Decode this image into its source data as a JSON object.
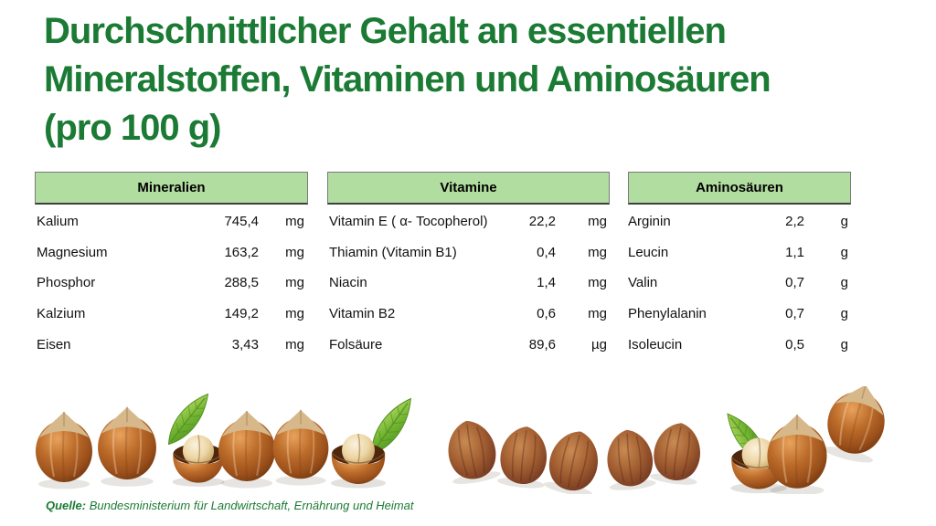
{
  "title": {
    "lines": [
      "Durchschnittlicher Gehalt an essentiellen",
      "Mineralstoffen, Vitaminen und Aminosäuren",
      "(pro 100 g)"
    ]
  },
  "tables": [
    {
      "header": "Mineralien",
      "rows": [
        {
          "name": "Kalium",
          "value": "745,4",
          "unit": "mg"
        },
        {
          "name": "Magnesium",
          "value": "163,2",
          "unit": "mg"
        },
        {
          "name": "Phosphor",
          "value": "288,5",
          "unit": "mg"
        },
        {
          "name": "Kalzium",
          "value": "149,2",
          "unit": "mg"
        },
        {
          "name": "Eisen",
          "value": "3,43",
          "unit": "mg"
        }
      ]
    },
    {
      "header": "Vitamine",
      "rows": [
        {
          "name": "Vitamin E ( α- Tocopherol)",
          "value": "22,2",
          "unit": "mg"
        },
        {
          "name": "Thiamin (Vitamin B1)",
          "value": "0,4",
          "unit": "mg"
        },
        {
          "name": "Niacin",
          "value": "1,4",
          "unit": "mg"
        },
        {
          "name": "Vitamin B2",
          "value": "0,6",
          "unit": "mg"
        },
        {
          "name": "Folsäure",
          "value": "89,6",
          "unit": "µg"
        }
      ]
    },
    {
      "header": "Aminosäuren",
      "rows": [
        {
          "name": "Arginin",
          "value": "2,2",
          "unit": "g"
        },
        {
          "name": "Leucin",
          "value": "1,1",
          "unit": "g"
        },
        {
          "name": "Valin",
          "value": "0,7",
          "unit": "g"
        },
        {
          "name": "Phenylalanin",
          "value": "0,7",
          "unit": "g"
        },
        {
          "name": "Isoleucin",
          "value": "0,5",
          "unit": "g"
        }
      ]
    }
  ],
  "source": {
    "label": "Quelle:",
    "text": " Bundesministerium für Landwirtschaft, Ernährung und Heimat"
  },
  "colors": {
    "title_green": "#1b7a34",
    "table_header_bg": "#b2dda0",
    "table_header_border": "#3f3f3f",
    "body_text": "#111111"
  },
  "decor": {
    "description": "photo strip of hazelnuts along the bottom",
    "items": [
      "hazelnut-whole",
      "hazelnut-whole",
      "leaf",
      "hazelnut-cracked-with-kernel",
      "hazelnut-whole",
      "hazelnut-whole",
      "hazelnut-cracked-with-kernel",
      "leaf",
      "hazelnut-kernel",
      "hazelnut-kernel",
      "hazelnut-kernel",
      "hazelnut-kernel",
      "hazelnut-kernel",
      "leaf",
      "hazelnut-cracked-with-kernel",
      "hazelnut-whole",
      "hazelnut-whole-tilted"
    ]
  }
}
